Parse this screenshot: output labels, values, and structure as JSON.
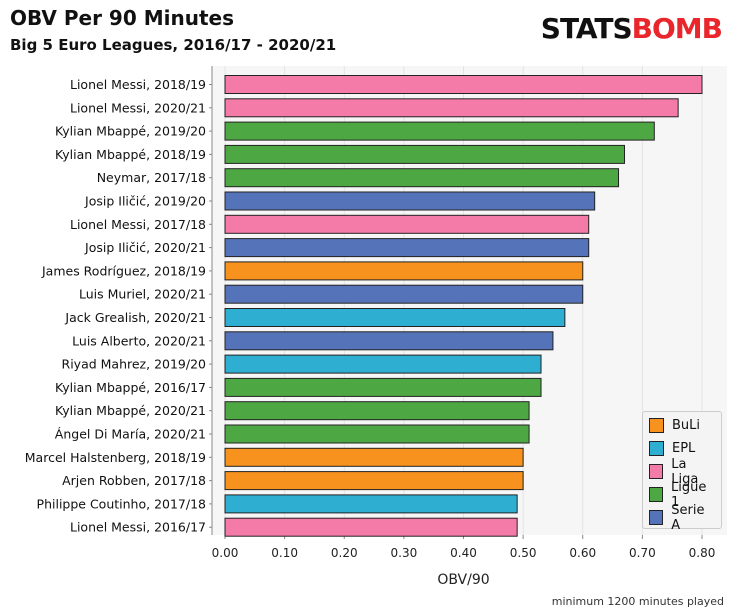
{
  "header": {
    "title": "OBV Per 90 Minutes",
    "subtitle": "Big 5 Euro Leagues, 2016/17 - 2020/21",
    "logo_part1": "STATS",
    "logo_part2": "BOMB"
  },
  "footnote": "minimum 1200 minutes played",
  "legend": {
    "items": [
      {
        "label": "BuLi",
        "color": "#f7921e"
      },
      {
        "label": "EPL",
        "color": "#2eaed1"
      },
      {
        "label": "La Liga",
        "color": "#f47aa8"
      },
      {
        "label": "Ligue 1",
        "color": "#4da843"
      },
      {
        "label": "Serie A",
        "color": "#5573b9"
      }
    ]
  },
  "chart_data": {
    "type": "bar",
    "orientation": "horizontal",
    "xlabel": "OBV/90",
    "ylabel": "",
    "xlim": [
      0,
      0.82
    ],
    "xticks": [
      "0.00",
      "0.10",
      "0.20",
      "0.30",
      "0.40",
      "0.50",
      "0.60",
      "0.70",
      "0.80"
    ],
    "grid": true,
    "legend_position": "bottom-right",
    "categories": [
      "Lionel Messi, 2018/19",
      "Lionel Messi, 2020/21",
      "Kylian Mbappé, 2019/20",
      "Kylian Mbappé, 2018/19",
      "Neymar, 2017/18",
      "Josip Iličić, 2019/20",
      "Lionel Messi, 2017/18",
      "Josip Iličić, 2020/21",
      "James Rodríguez, 2018/19",
      "Luis Muriel, 2020/21",
      "Jack Grealish, 2020/21",
      "Luis Alberto, 2020/21",
      "Riyad Mahrez, 2019/20",
      "Kylian Mbappé, 2016/17",
      "Kylian Mbappé, 2020/21",
      "Ángel Di María, 2020/21",
      "Marcel Halstenberg, 2018/19",
      "Arjen Robben, 2017/18",
      "Philippe Coutinho, 2017/18",
      "Lionel Messi, 2016/17"
    ],
    "values": [
      0.8,
      0.76,
      0.72,
      0.67,
      0.66,
      0.62,
      0.61,
      0.61,
      0.6,
      0.6,
      0.57,
      0.55,
      0.53,
      0.53,
      0.51,
      0.51,
      0.5,
      0.5,
      0.49,
      0.49
    ],
    "leagues": [
      "La Liga",
      "La Liga",
      "Ligue 1",
      "Ligue 1",
      "Ligue 1",
      "Serie A",
      "La Liga",
      "Serie A",
      "BuLi",
      "Serie A",
      "EPL",
      "Serie A",
      "EPL",
      "Ligue 1",
      "Ligue 1",
      "Ligue 1",
      "BuLi",
      "BuLi",
      "EPL",
      "La Liga"
    ]
  }
}
